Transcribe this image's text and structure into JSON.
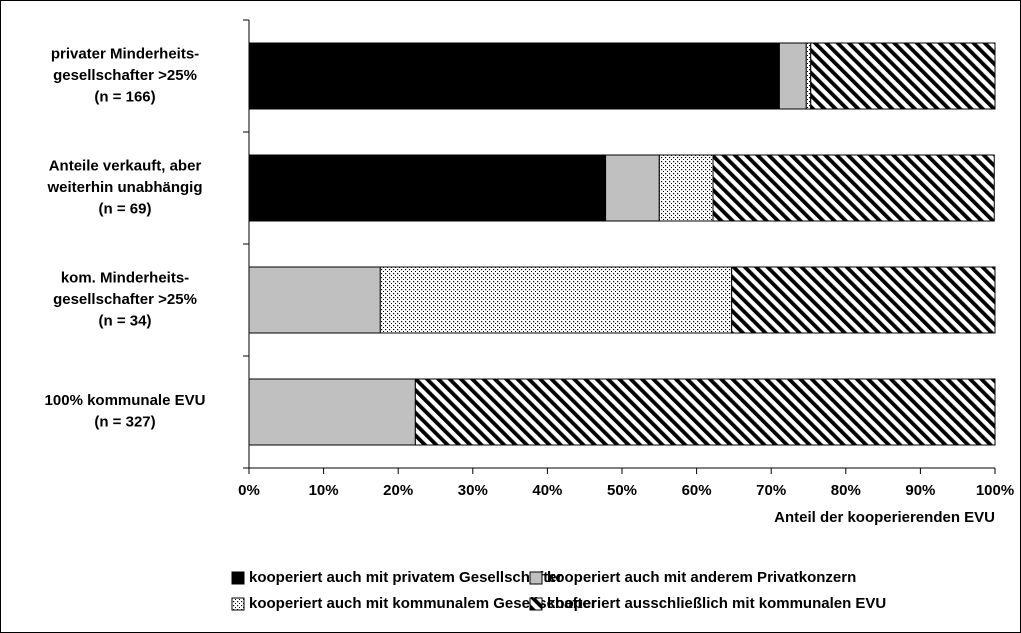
{
  "chart_data": {
    "type": "stacked_barh",
    "categories": [
      [
        "privater Minderheits-",
        "gesellschafter >25%",
        "(n = 166)"
      ],
      [
        "Anteile verkauft, aber",
        "weiterhin unabhängig",
        "(n = 69)"
      ],
      [
        "kom. Minderheits-",
        "gesellschafter >25%",
        "(n = 34)"
      ],
      [
        "100% kommunale EVU",
        "(n = 327)"
      ]
    ],
    "series": [
      {
        "name": "kooperiert auch mit privatem Gesellschafter",
        "color": "#000000",
        "pattern": "solid",
        "values": [
          71.1,
          47.8,
          0,
          0
        ]
      },
      {
        "name": "kooperiert auch mit anderem Privatkonzern",
        "color": "#c0c0c0",
        "pattern": "solid",
        "values": [
          3.6,
          7.2,
          17.6,
          22.3
        ]
      },
      {
        "name": "kooperiert auch mit kommunalem Gesellschafter",
        "color": "#ffffff",
        "pattern": "dots",
        "values": [
          0.6,
          7.2,
          47.1,
          0
        ]
      },
      {
        "name": "kooperiert ausschließlich mit kommunalen EVU",
        "color": "#ffffff",
        "pattern": "hatch",
        "values": [
          24.7,
          37.7,
          35.3,
          77.7
        ]
      }
    ],
    "xlim": [
      0,
      100
    ],
    "xticks": [
      {
        "value": 0,
        "label": "0%"
      },
      {
        "value": 10,
        "label": "10%"
      },
      {
        "value": 20,
        "label": "20%"
      },
      {
        "value": 30,
        "label": "30%"
      },
      {
        "value": 40,
        "label": "40%"
      },
      {
        "value": 50,
        "label": "50%"
      },
      {
        "value": 60,
        "label": "60%"
      },
      {
        "value": 70,
        "label": "70%"
      },
      {
        "value": 80,
        "label": "80%"
      },
      {
        "value": 90,
        "label": "90%"
      },
      {
        "value": 100,
        "label": "100%"
      }
    ],
    "xlabel": "Anteil der kooperierenden EVU",
    "legend": "bottom"
  }
}
